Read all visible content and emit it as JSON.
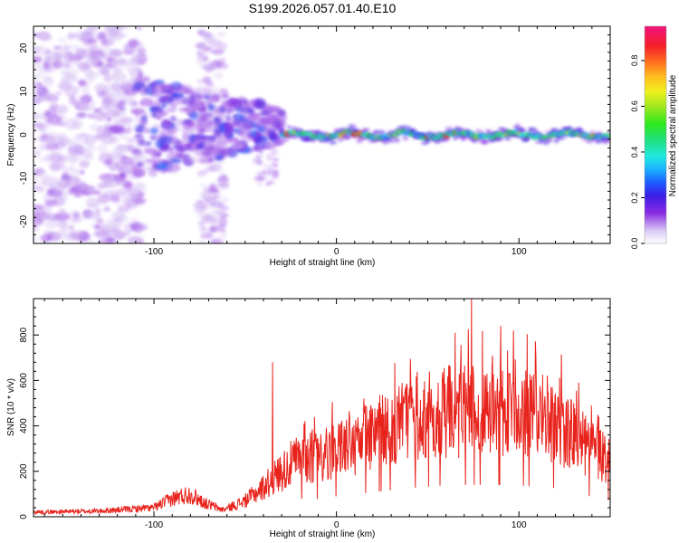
{
  "figure_title": "S199.2026.057.01.40.E10",
  "chart_data": [
    {
      "type": "heatmap",
      "title": "S199.2026.057.01.40.E10",
      "xlabel": "Height of straight line (km)",
      "ylabel": "Frequency (Hz)",
      "xlim": [
        -166,
        150
      ],
      "ylim": [
        -25,
        25
      ],
      "xticks": [
        -100,
        0,
        100
      ],
      "yticks": [
        -20,
        -10,
        0,
        10,
        20
      ],
      "colorbar": {
        "label": "Normalized spectral amplitude",
        "range": [
          0,
          0.95
        ],
        "ticks": [
          0.0,
          0.2,
          0.4,
          0.6,
          0.8
        ]
      },
      "description_segments": [
        {
          "x_range": [
            -166,
            -110
          ],
          "frequency_spread_hz": [
            -25,
            25
          ],
          "amplitude": "low, diffuse"
        },
        {
          "x_range": [
            -110,
            -30
          ],
          "frequency_spread_hz": [
            -15,
            15
          ],
          "amplitude": "low to moderate, clustered"
        },
        {
          "x_range": [
            -30,
            150
          ],
          "frequency_spread_hz": [
            -2,
            2
          ],
          "amplitude": "moderate to high, narrow band near 0 Hz"
        }
      ]
    },
    {
      "type": "line",
      "xlabel": "Height of straight line (km)",
      "ylabel": "SNR (10 * v/v)",
      "xlim": [
        -166,
        150
      ],
      "ylim": [
        0,
        960
      ],
      "xticks": [
        -100,
        0,
        100
      ],
      "yticks": [
        0,
        200,
        400,
        600,
        800
      ],
      "color": "#e8231c",
      "envelope": [
        {
          "x": -166,
          "y": 20
        },
        {
          "x": -130,
          "y": 25
        },
        {
          "x": -100,
          "y": 40
        },
        {
          "x": -90,
          "y": 80
        },
        {
          "x": -80,
          "y": 100
        },
        {
          "x": -72,
          "y": 60
        },
        {
          "x": -62,
          "y": 30
        },
        {
          "x": -50,
          "y": 70
        },
        {
          "x": -40,
          "y": 130
        },
        {
          "x": -30,
          "y": 200
        },
        {
          "x": -20,
          "y": 260
        },
        {
          "x": -10,
          "y": 260
        },
        {
          "x": 0,
          "y": 300
        },
        {
          "x": 20,
          "y": 360
        },
        {
          "x": 40,
          "y": 420
        },
        {
          "x": 60,
          "y": 460
        },
        {
          "x": 80,
          "y": 470
        },
        {
          "x": 100,
          "y": 460
        },
        {
          "x": 120,
          "y": 420
        },
        {
          "x": 135,
          "y": 320
        },
        {
          "x": 150,
          "y": 240
        }
      ],
      "peaks": [
        {
          "x": -35,
          "y": 680
        },
        {
          "x": 74,
          "y": 960
        },
        {
          "x": 90,
          "y": 840
        },
        {
          "x": 65,
          "y": 810
        },
        {
          "x": 97,
          "y": 820
        }
      ]
    }
  ]
}
